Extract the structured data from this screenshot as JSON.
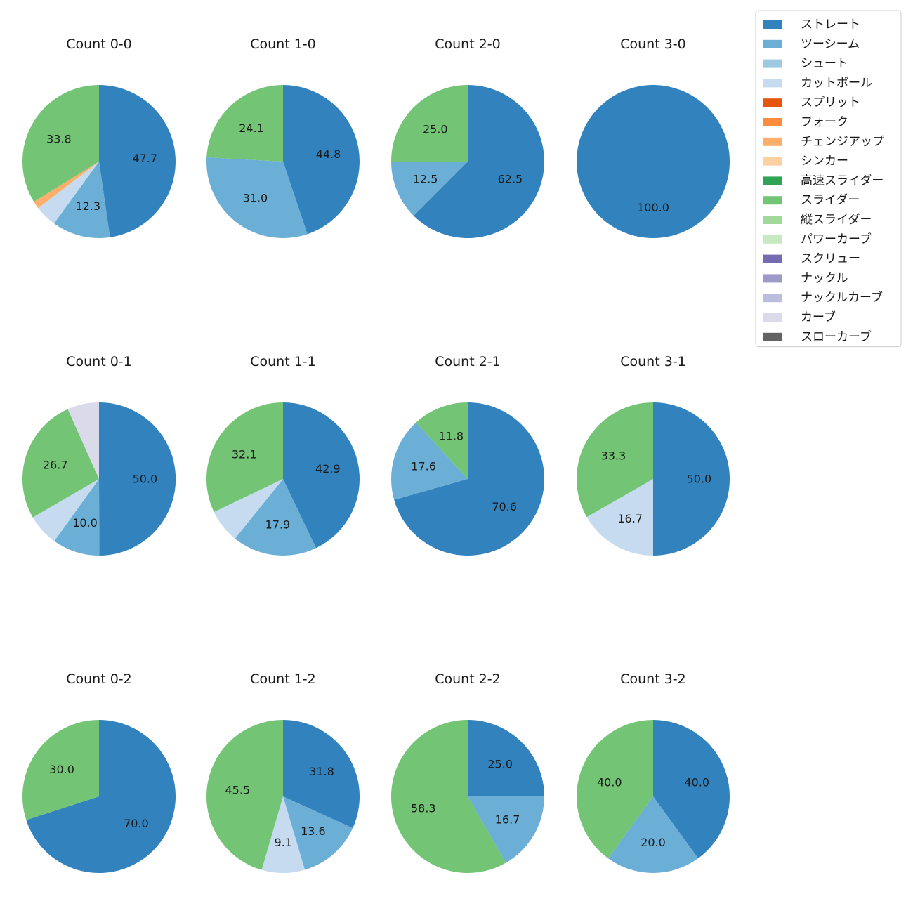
{
  "legend": {
    "items": [
      {
        "label": "ストレート",
        "color": "#3182bd"
      },
      {
        "label": "ツーシーム",
        "color": "#6baed6"
      },
      {
        "label": "シュート",
        "color": "#9ecae1"
      },
      {
        "label": "カットボール",
        "color": "#c6dbef"
      },
      {
        "label": "スプリット",
        "color": "#e6550d"
      },
      {
        "label": "フォーク",
        "color": "#fd8d3c"
      },
      {
        "label": "チェンジアップ",
        "color": "#fdae6b"
      },
      {
        "label": "シンカー",
        "color": "#fdd0a2"
      },
      {
        "label": "高速スライダー",
        "color": "#31a354"
      },
      {
        "label": "スライダー",
        "color": "#74c476"
      },
      {
        "label": "縦スライダー",
        "color": "#a1d99b"
      },
      {
        "label": "パワーカーブ",
        "color": "#c7e9c0"
      },
      {
        "label": "スクリュー",
        "color": "#756bb1"
      },
      {
        "label": "ナックル",
        "color": "#9e9ac8"
      },
      {
        "label": "ナックルカーブ",
        "color": "#bcbddc"
      },
      {
        "label": "カーブ",
        "color": "#dadaeb"
      },
      {
        "label": "スローカーブ",
        "color": "#636363"
      }
    ]
  },
  "chart_data": [
    {
      "type": "pie",
      "title": "Count 0-0",
      "slices": [
        {
          "label": "ストレート",
          "value": 47.7,
          "color": "#3182bd",
          "text": "47.7"
        },
        {
          "label": "ツーシーム",
          "value": 12.3,
          "color": "#6baed6",
          "text": "12.3"
        },
        {
          "label": "カットボール",
          "value": 4.6,
          "color": "#c6dbef",
          "text": ""
        },
        {
          "label": "チェンジアップ",
          "value": 1.6,
          "color": "#fdae6b",
          "text": ""
        },
        {
          "label": "スライダー",
          "value": 33.8,
          "color": "#74c476",
          "text": "33.8"
        }
      ]
    },
    {
      "type": "pie",
      "title": "Count 1-0",
      "slices": [
        {
          "label": "ストレート",
          "value": 44.8,
          "color": "#3182bd",
          "text": "44.8"
        },
        {
          "label": "ツーシーム",
          "value": 31.0,
          "color": "#6baed6",
          "text": "31.0"
        },
        {
          "label": "スライダー",
          "value": 24.1,
          "color": "#74c476",
          "text": "24.1"
        }
      ]
    },
    {
      "type": "pie",
      "title": "Count 2-0",
      "slices": [
        {
          "label": "ストレート",
          "value": 62.5,
          "color": "#3182bd",
          "text": "62.5"
        },
        {
          "label": "ツーシーム",
          "value": 12.5,
          "color": "#6baed6",
          "text": "12.5"
        },
        {
          "label": "スライダー",
          "value": 25.0,
          "color": "#74c476",
          "text": "25.0"
        }
      ]
    },
    {
      "type": "pie",
      "title": "Count 3-0",
      "slices": [
        {
          "label": "ストレート",
          "value": 100.0,
          "color": "#3182bd",
          "text": "100.0"
        }
      ]
    },
    {
      "type": "pie",
      "title": "Count 0-1",
      "slices": [
        {
          "label": "ストレート",
          "value": 50.0,
          "color": "#3182bd",
          "text": "50.0"
        },
        {
          "label": "ツーシーム",
          "value": 10.0,
          "color": "#6baed6",
          "text": "10.0"
        },
        {
          "label": "カットボール",
          "value": 6.7,
          "color": "#c6dbef",
          "text": ""
        },
        {
          "label": "スライダー",
          "value": 26.7,
          "color": "#74c476",
          "text": "26.7"
        },
        {
          "label": "カーブ",
          "value": 6.7,
          "color": "#dadaeb",
          "text": ""
        }
      ]
    },
    {
      "type": "pie",
      "title": "Count 1-1",
      "slices": [
        {
          "label": "ストレート",
          "value": 42.9,
          "color": "#3182bd",
          "text": "42.9"
        },
        {
          "label": "ツーシーム",
          "value": 17.9,
          "color": "#6baed6",
          "text": "17.9"
        },
        {
          "label": "カットボール",
          "value": 7.1,
          "color": "#c6dbef",
          "text": ""
        },
        {
          "label": "スライダー",
          "value": 32.1,
          "color": "#74c476",
          "text": "32.1"
        }
      ]
    },
    {
      "type": "pie",
      "title": "Count 2-1",
      "slices": [
        {
          "label": "ストレート",
          "value": 70.6,
          "color": "#3182bd",
          "text": "70.6"
        },
        {
          "label": "ツーシーム",
          "value": 17.6,
          "color": "#6baed6",
          "text": "17.6"
        },
        {
          "label": "スライダー",
          "value": 11.8,
          "color": "#74c476",
          "text": "11.8"
        }
      ]
    },
    {
      "type": "pie",
      "title": "Count 3-1",
      "slices": [
        {
          "label": "ストレート",
          "value": 50.0,
          "color": "#3182bd",
          "text": "50.0"
        },
        {
          "label": "カットボール",
          "value": 16.7,
          "color": "#c6dbef",
          "text": "16.7"
        },
        {
          "label": "スライダー",
          "value": 33.3,
          "color": "#74c476",
          "text": "33.3"
        }
      ]
    },
    {
      "type": "pie",
      "title": "Count 0-2",
      "slices": [
        {
          "label": "ストレート",
          "value": 70.0,
          "color": "#3182bd",
          "text": "70.0"
        },
        {
          "label": "スライダー",
          "value": 30.0,
          "color": "#74c476",
          "text": "30.0"
        }
      ]
    },
    {
      "type": "pie",
      "title": "Count 1-2",
      "slices": [
        {
          "label": "ストレート",
          "value": 31.8,
          "color": "#3182bd",
          "text": "31.8"
        },
        {
          "label": "ツーシーム",
          "value": 13.6,
          "color": "#6baed6",
          "text": "13.6"
        },
        {
          "label": "カットボール",
          "value": 9.1,
          "color": "#c6dbef",
          "text": "9.1"
        },
        {
          "label": "スライダー",
          "value": 45.5,
          "color": "#74c476",
          "text": "45.5"
        }
      ]
    },
    {
      "type": "pie",
      "title": "Count 2-2",
      "slices": [
        {
          "label": "ストレート",
          "value": 25.0,
          "color": "#3182bd",
          "text": "25.0"
        },
        {
          "label": "ツーシーム",
          "value": 16.7,
          "color": "#6baed6",
          "text": "16.7"
        },
        {
          "label": "スライダー",
          "value": 58.3,
          "color": "#74c476",
          "text": "58.3"
        }
      ]
    },
    {
      "type": "pie",
      "title": "Count 3-2",
      "slices": [
        {
          "label": "ストレート",
          "value": 40.0,
          "color": "#3182bd",
          "text": "40.0"
        },
        {
          "label": "ツーシーム",
          "value": 20.0,
          "color": "#6baed6",
          "text": "20.0"
        },
        {
          "label": "スライダー",
          "value": 40.0,
          "color": "#74c476",
          "text": "40.0"
        }
      ]
    }
  ]
}
